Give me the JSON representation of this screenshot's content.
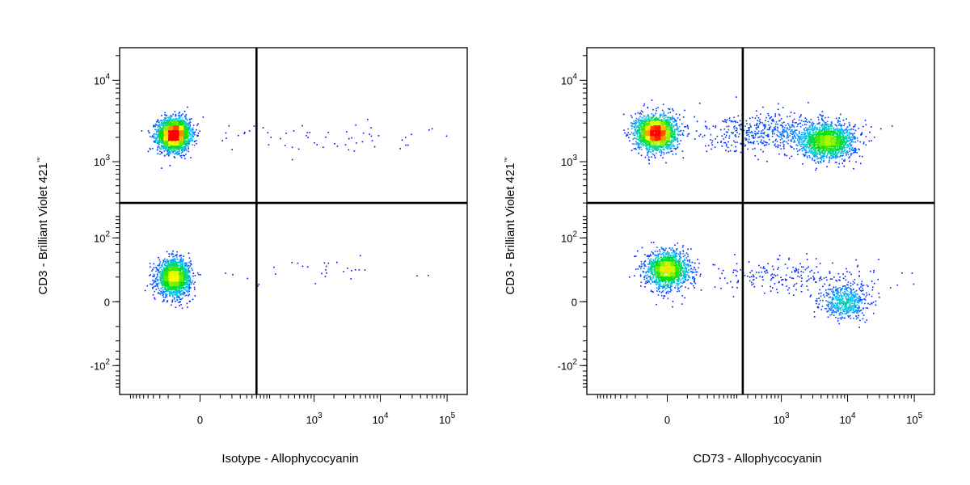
{
  "chart_data": [
    {
      "type": "scatter",
      "subtype": "flow-cytometry-density-dot-plot",
      "title": "",
      "xlabel": "Isotype - Allophycocyanin",
      "ylabel": "CD3 - Brilliant Violet 421",
      "ylabel_mark": "™",
      "x_scale": "biexponential",
      "y_scale": "biexponential",
      "xlim": [
        -300,
        200000
      ],
      "ylim": [
        -250,
        25000
      ],
      "x_ticks": [
        {
          "value": 0,
          "base": "0",
          "exp": ""
        },
        {
          "value": 1000,
          "base": "10",
          "exp": "3"
        },
        {
          "value": 10000,
          "base": "10",
          "exp": "4"
        },
        {
          "value": 100000,
          "base": "10",
          "exp": "5"
        }
      ],
      "y_ticks": [
        {
          "value": -100,
          "base": "-10",
          "exp": "2"
        },
        {
          "value": 0,
          "base": "0",
          "exp": ""
        },
        {
          "value": 100,
          "base": "10",
          "exp": "2"
        },
        {
          "value": 1000,
          "base": "10",
          "exp": "3"
        },
        {
          "value": 10000,
          "base": "10",
          "exp": "4"
        }
      ],
      "quadrant_gate": {
        "x": 120,
        "y": 300
      },
      "populations": [
        {
          "center_x": -30,
          "center_y": 2200,
          "spread_x": 0.12,
          "spread_y": 0.12,
          "n": 2600
        },
        {
          "center_x": -30,
          "center_y": 20,
          "spread_x": 0.12,
          "spread_y": 0.13,
          "n": 1900
        },
        {
          "center_x": 1000,
          "center_y": 2000,
          "spread_x": 0.8,
          "spread_y": 0.12,
          "n": 60
        },
        {
          "center_x": 1000,
          "center_y": 30,
          "spread_x": 0.8,
          "spread_y": 0.12,
          "n": 30
        }
      ],
      "grid": false,
      "legend": "none",
      "color_scale": [
        "#0000ff",
        "#00c8ff",
        "#00e000",
        "#ffff00",
        "#ff0000"
      ]
    },
    {
      "type": "scatter",
      "subtype": "flow-cytometry-density-dot-plot",
      "title": "",
      "xlabel": "CD73 - Allophycocyanin",
      "ylabel": "CD3 - Brilliant Violet 421",
      "ylabel_mark": "™",
      "x_scale": "biexponential",
      "y_scale": "biexponential",
      "xlim": [
        -300,
        200000
      ],
      "ylim": [
        -250,
        25000
      ],
      "x_ticks": [
        {
          "value": 0,
          "base": "0",
          "exp": ""
        },
        {
          "value": 1000,
          "base": "10",
          "exp": "3"
        },
        {
          "value": 10000,
          "base": "10",
          "exp": "4"
        },
        {
          "value": 100000,
          "base": "10",
          "exp": "5"
        }
      ],
      "y_ticks": [
        {
          "value": -100,
          "base": "-10",
          "exp": "2"
        },
        {
          "value": 0,
          "base": "0",
          "exp": ""
        },
        {
          "value": 100,
          "base": "10",
          "exp": "2"
        },
        {
          "value": 1000,
          "base": "10",
          "exp": "3"
        },
        {
          "value": 10000,
          "base": "10",
          "exp": "4"
        }
      ],
      "quadrant_gate": {
        "x": 250,
        "y": 300
      },
      "populations": [
        {
          "center_x": -10,
          "center_y": 2300,
          "spread_x": 0.15,
          "spread_y": 0.13,
          "n": 2100
        },
        {
          "center_x": 5000,
          "center_y": 1800,
          "spread_x": 0.2,
          "spread_y": 0.13,
          "n": 1500
        },
        {
          "center_x": 900,
          "center_y": 2300,
          "spread_x": 0.55,
          "spread_y": 0.14,
          "n": 650
        },
        {
          "center_x": 0,
          "center_y": 30,
          "spread_x": 0.16,
          "spread_y": 0.14,
          "n": 1500
        },
        {
          "center_x": 9000,
          "center_y": 0,
          "spread_x": 0.18,
          "spread_y": 0.12,
          "n": 550
        },
        {
          "center_x": 1500,
          "center_y": 20,
          "spread_x": 0.7,
          "spread_y": 0.13,
          "n": 250
        }
      ],
      "grid": false,
      "legend": "none",
      "color_scale": [
        "#0000ff",
        "#00c8ff",
        "#00e000",
        "#ffff00",
        "#ff0000"
      ]
    }
  ]
}
